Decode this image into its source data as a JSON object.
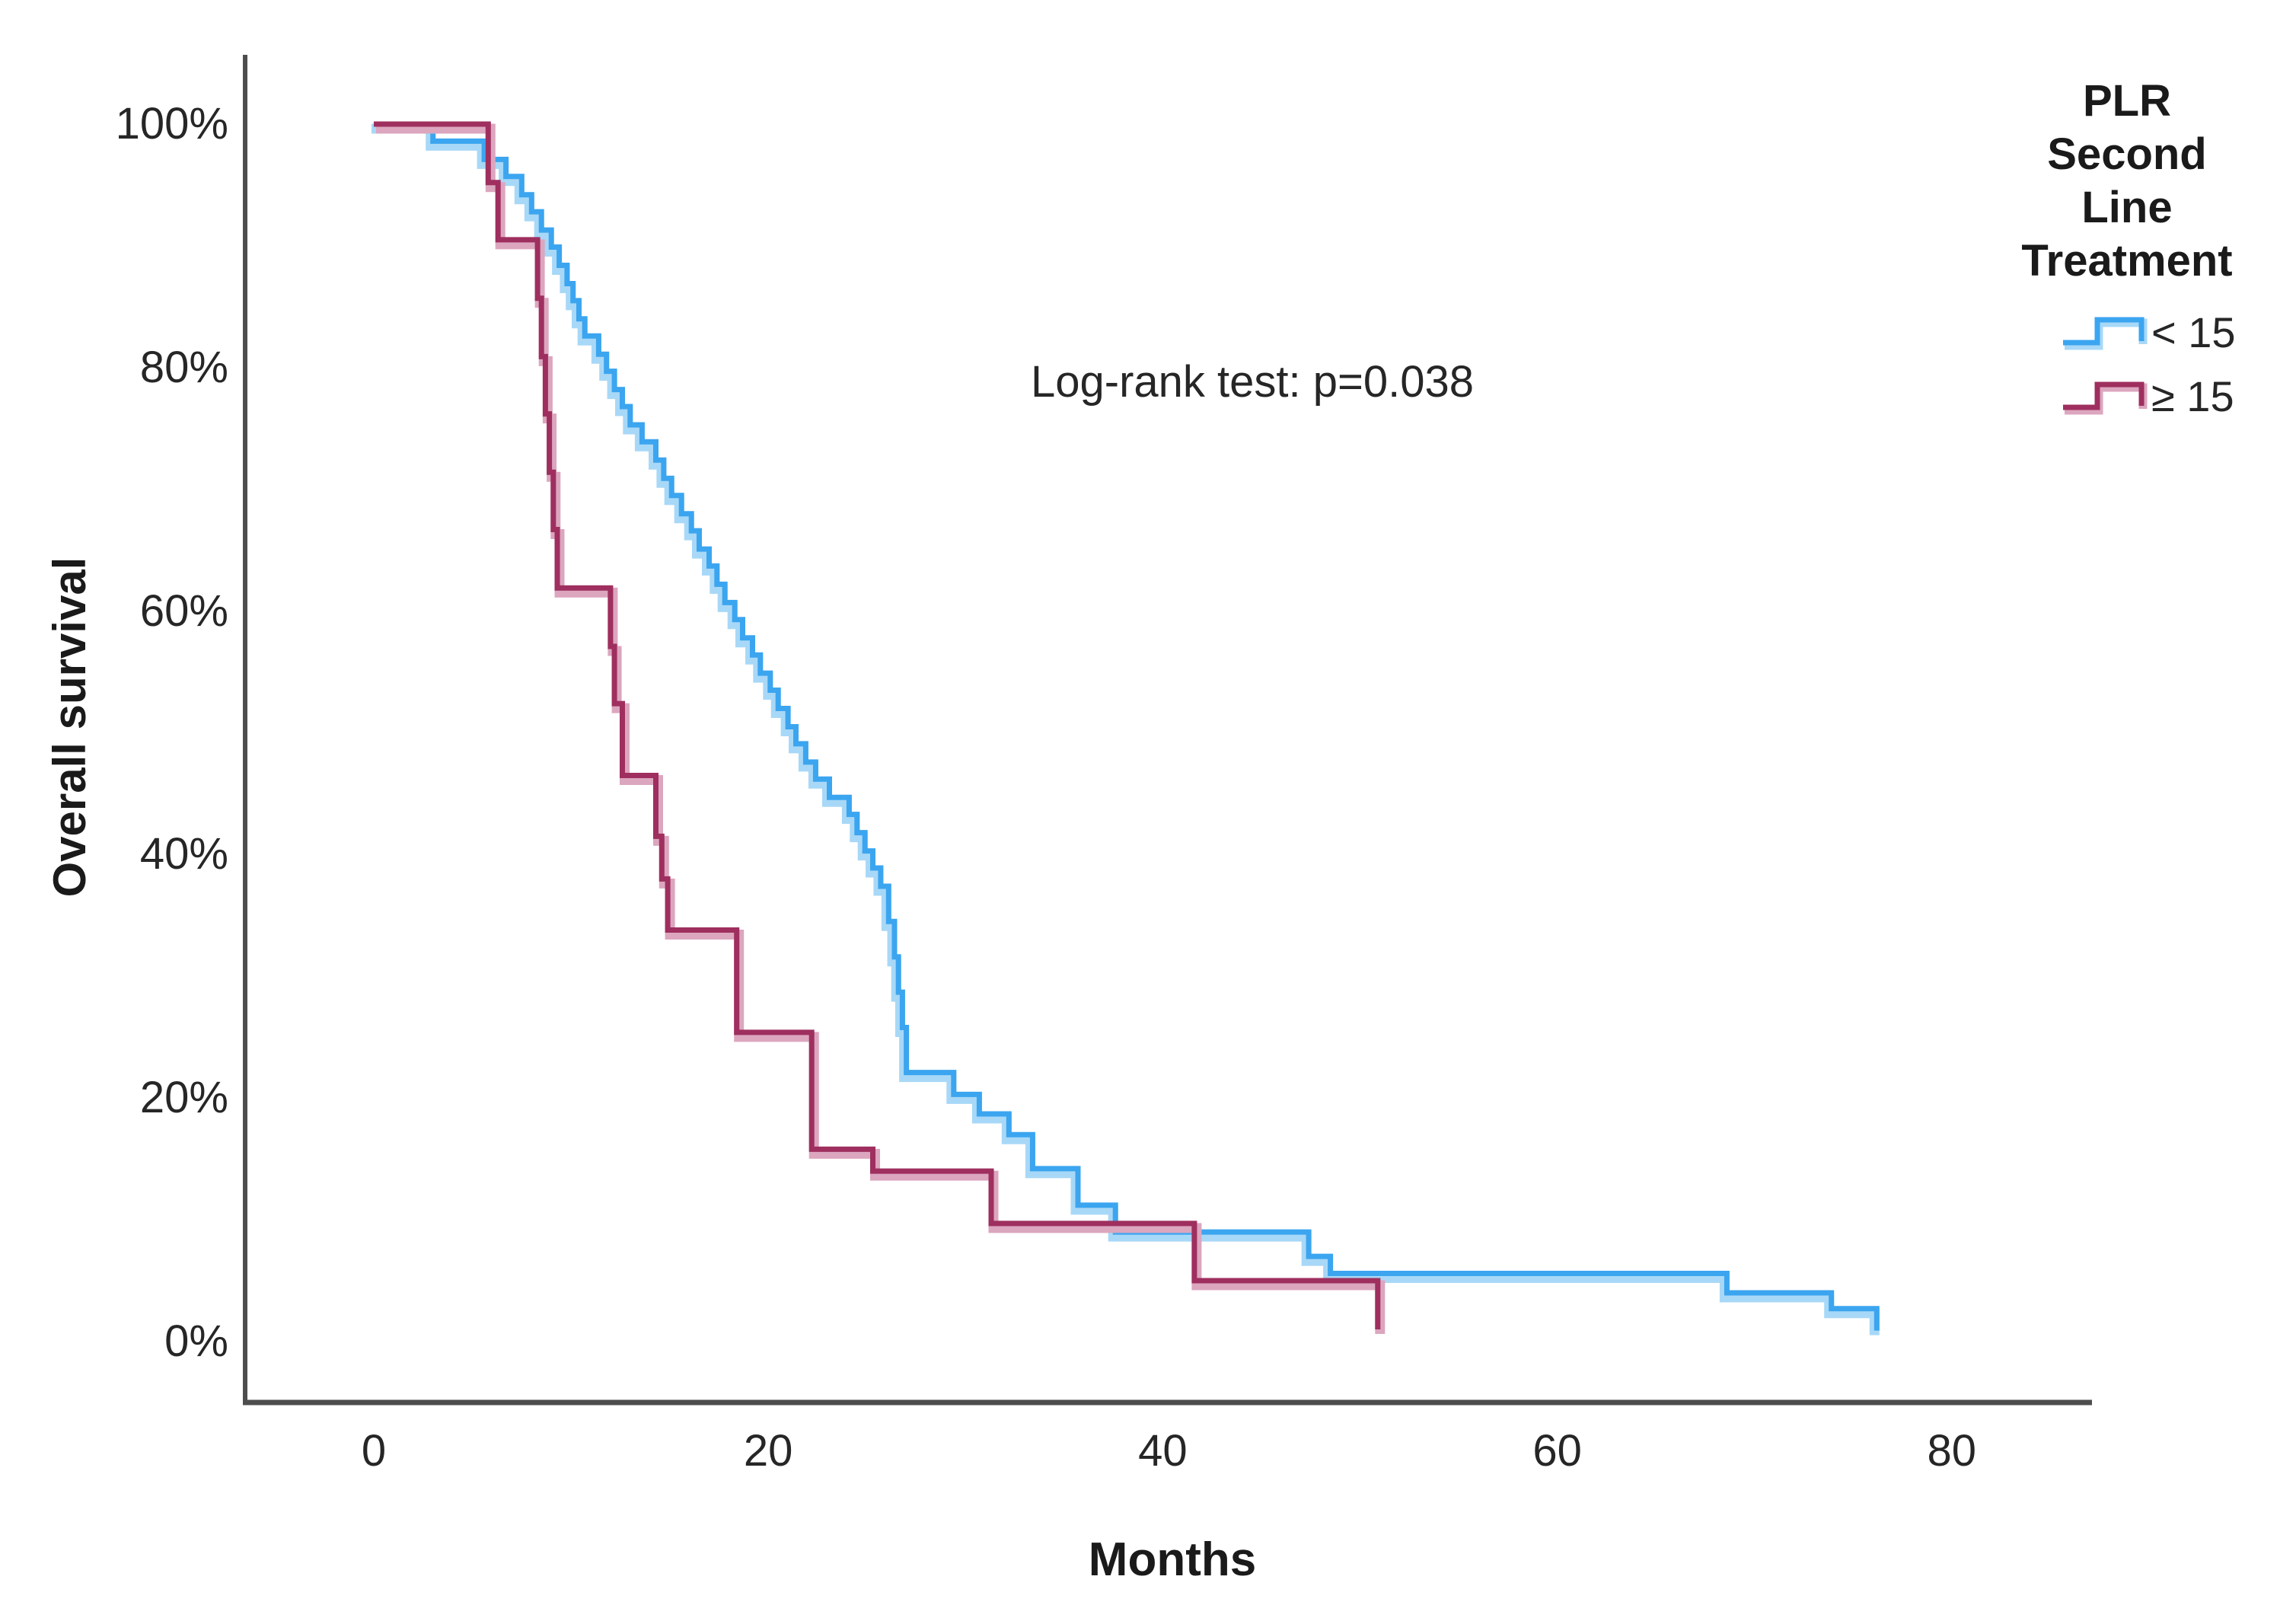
{
  "annotation": {
    "text": "Log-rank test: p=0.038"
  },
  "y_axis": {
    "title": "Overall survival"
  },
  "x_axis": {
    "title": "Months"
  },
  "legend": {
    "title_lines": [
      "PLR",
      "Second",
      "Line",
      "Treatment"
    ],
    "entries": [
      {
        "label": "< 15",
        "color": "#3BA5F0",
        "halo": "#A8D8F7"
      },
      {
        "label": "≥ 15",
        "color": "#9E2F5E",
        "halo": "#DCA6BF"
      }
    ]
  },
  "chart_data": {
    "type": "line",
    "subtype": "kaplan_meier_step",
    "title": "",
    "xlabel": "Months",
    "ylabel": "Overall survival",
    "x_ticks": [
      0,
      20,
      40,
      60,
      80
    ],
    "y_ticks": [
      {
        "label": "0%",
        "value": 0
      },
      {
        "label": "20%",
        "value": 20
      },
      {
        "label": "40%",
        "value": 40
      },
      {
        "label": "60%",
        "value": 60
      },
      {
        "label": "80%",
        "value": 80
      },
      {
        "label": "100%",
        "value": 100
      }
    ],
    "xlim": [
      0,
      87
    ],
    "ylim": [
      0,
      100
    ],
    "grid": false,
    "legend_position": "top-right",
    "annotations": [
      {
        "text": "Log-rank test: p=0.038",
        "x_month": 34,
        "y_percent": 78
      }
    ],
    "series": [
      {
        "name": "< 15",
        "group": "PLR Second Line Treatment < 15",
        "color": "#3BA5F0",
        "halo": "#A8D8F7",
        "points": [
          [
            0,
            100
          ],
          [
            3.0,
            98.6
          ],
          [
            5.6,
            97.1
          ],
          [
            6.7,
            95.7
          ],
          [
            7.5,
            94.2
          ],
          [
            8.0,
            92.8
          ],
          [
            8.5,
            91.3
          ],
          [
            9.0,
            89.9
          ],
          [
            9.4,
            88.4
          ],
          [
            9.8,
            86.9
          ],
          [
            10.1,
            85.5
          ],
          [
            10.4,
            84.0
          ],
          [
            10.7,
            82.6
          ],
          [
            11.4,
            81.1
          ],
          [
            11.8,
            79.7
          ],
          [
            12.2,
            78.2
          ],
          [
            12.6,
            76.8
          ],
          [
            13.0,
            75.3
          ],
          [
            13.6,
            73.9
          ],
          [
            14.3,
            72.4
          ],
          [
            14.7,
            70.9
          ],
          [
            15.1,
            69.5
          ],
          [
            15.6,
            68.0
          ],
          [
            16.1,
            66.6
          ],
          [
            16.5,
            65.1
          ],
          [
            17.0,
            63.7
          ],
          [
            17.4,
            62.2
          ],
          [
            17.8,
            60.7
          ],
          [
            18.3,
            59.3
          ],
          [
            18.7,
            57.8
          ],
          [
            19.2,
            56.4
          ],
          [
            19.6,
            54.9
          ],
          [
            20.1,
            53.5
          ],
          [
            20.5,
            52.0
          ],
          [
            21.0,
            50.5
          ],
          [
            21.4,
            49.1
          ],
          [
            21.9,
            47.6
          ],
          [
            22.4,
            46.2
          ],
          [
            23.1,
            44.7
          ],
          [
            24.1,
            43.3
          ],
          [
            24.5,
            41.8
          ],
          [
            24.9,
            40.3
          ],
          [
            25.3,
            38.9
          ],
          [
            25.7,
            37.4
          ],
          [
            26.1,
            34.5
          ],
          [
            26.4,
            31.6
          ],
          [
            26.6,
            28.7
          ],
          [
            26.8,
            25.8
          ],
          [
            27.0,
            22.1
          ],
          [
            29.4,
            20.3
          ],
          [
            30.7,
            18.7
          ],
          [
            32.2,
            17.0
          ],
          [
            33.4,
            14.2
          ],
          [
            35.7,
            11.2
          ],
          [
            37.6,
            9.0
          ],
          [
            47.4,
            7.0
          ],
          [
            48.5,
            5.6
          ],
          [
            68.6,
            4.0
          ],
          [
            73.9,
            2.7
          ],
          [
            76.2,
            0.9
          ]
        ]
      },
      {
        "name": "≥ 15",
        "group": "PLR Second Line Treatment ≥ 15",
        "color": "#9E2F5E",
        "halo": "#DCA6BF",
        "points": [
          [
            0,
            100
          ],
          [
            5.8,
            95.2
          ],
          [
            6.3,
            90.5
          ],
          [
            8.3,
            85.7
          ],
          [
            8.5,
            80.9
          ],
          [
            8.7,
            76.2
          ],
          [
            8.9,
            71.4
          ],
          [
            9.1,
            66.7
          ],
          [
            9.3,
            61.9
          ],
          [
            12.0,
            57.1
          ],
          [
            12.2,
            52.4
          ],
          [
            12.6,
            46.5
          ],
          [
            14.3,
            41.5
          ],
          [
            14.6,
            38.0
          ],
          [
            14.9,
            33.8
          ],
          [
            18.4,
            25.4
          ],
          [
            22.2,
            15.8
          ],
          [
            25.3,
            14.0
          ],
          [
            31.3,
            9.7
          ],
          [
            41.6,
            5.0
          ],
          [
            50.9,
            1.0
          ]
        ]
      }
    ]
  }
}
